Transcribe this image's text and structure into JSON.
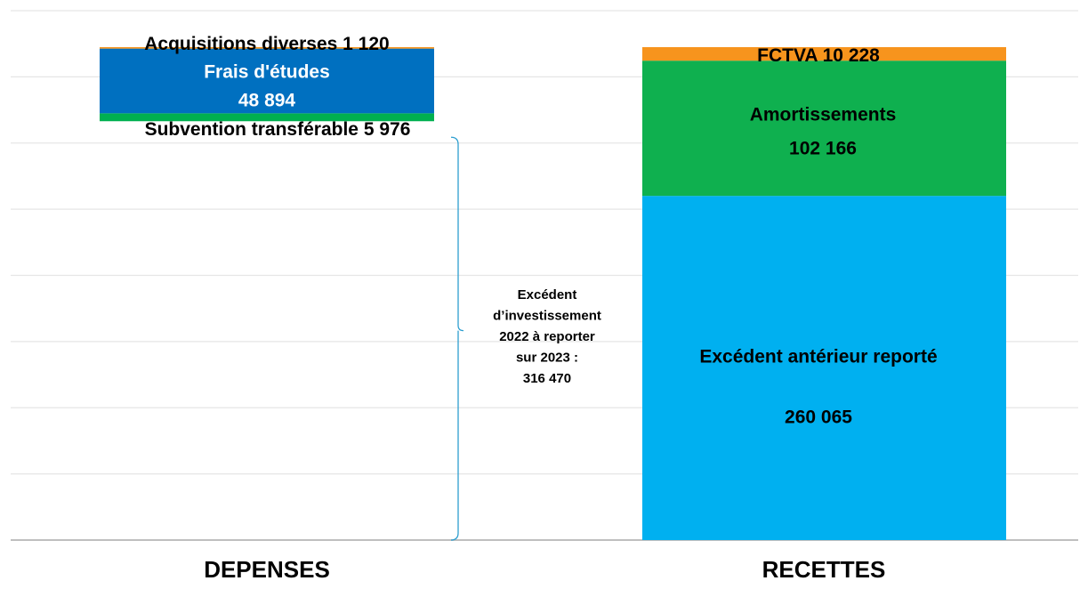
{
  "chart_data": {
    "type": "stacked_bar",
    "categories": [
      "DEPENSES",
      "RECETTES"
    ],
    "ylim": [
      0,
      400000
    ],
    "yticks": [
      0,
      50000,
      100000,
      150000,
      200000,
      250000,
      300000,
      350000,
      400000
    ],
    "grid": true,
    "stacks": [
      {
        "segments": [
          {
            "name": [
              "Excédent",
              "d’investissement",
              "2022 à reporter",
              "sur 2023 :"
            ],
            "value": 316470,
            "value_label": "316 470",
            "color": "none"
          },
          {
            "name": "Subvention transférable",
            "value": 5976,
            "value_label": "5 976",
            "color": "#00b050"
          },
          {
            "name": "Frais d'études",
            "value": 48894,
            "value_label": "48 894",
            "color": "#0070c0"
          },
          {
            "name": "Acquisitions diverses",
            "value": 1120,
            "value_label": "1 120",
            "color": "#f7941d"
          }
        ]
      },
      {
        "segments": [
          {
            "name": "Excédent antérieur reporté",
            "value": 260065,
            "value_label": "260 065",
            "color": "#00b0f0"
          },
          {
            "name": "Amortissements",
            "value": 102166,
            "value_label": "102 166",
            "color": "#0fb04f"
          },
          {
            "name": "FCTVA",
            "value": 10228,
            "value_label": "10 228",
            "color": "#f7941d"
          }
        ]
      }
    ]
  }
}
